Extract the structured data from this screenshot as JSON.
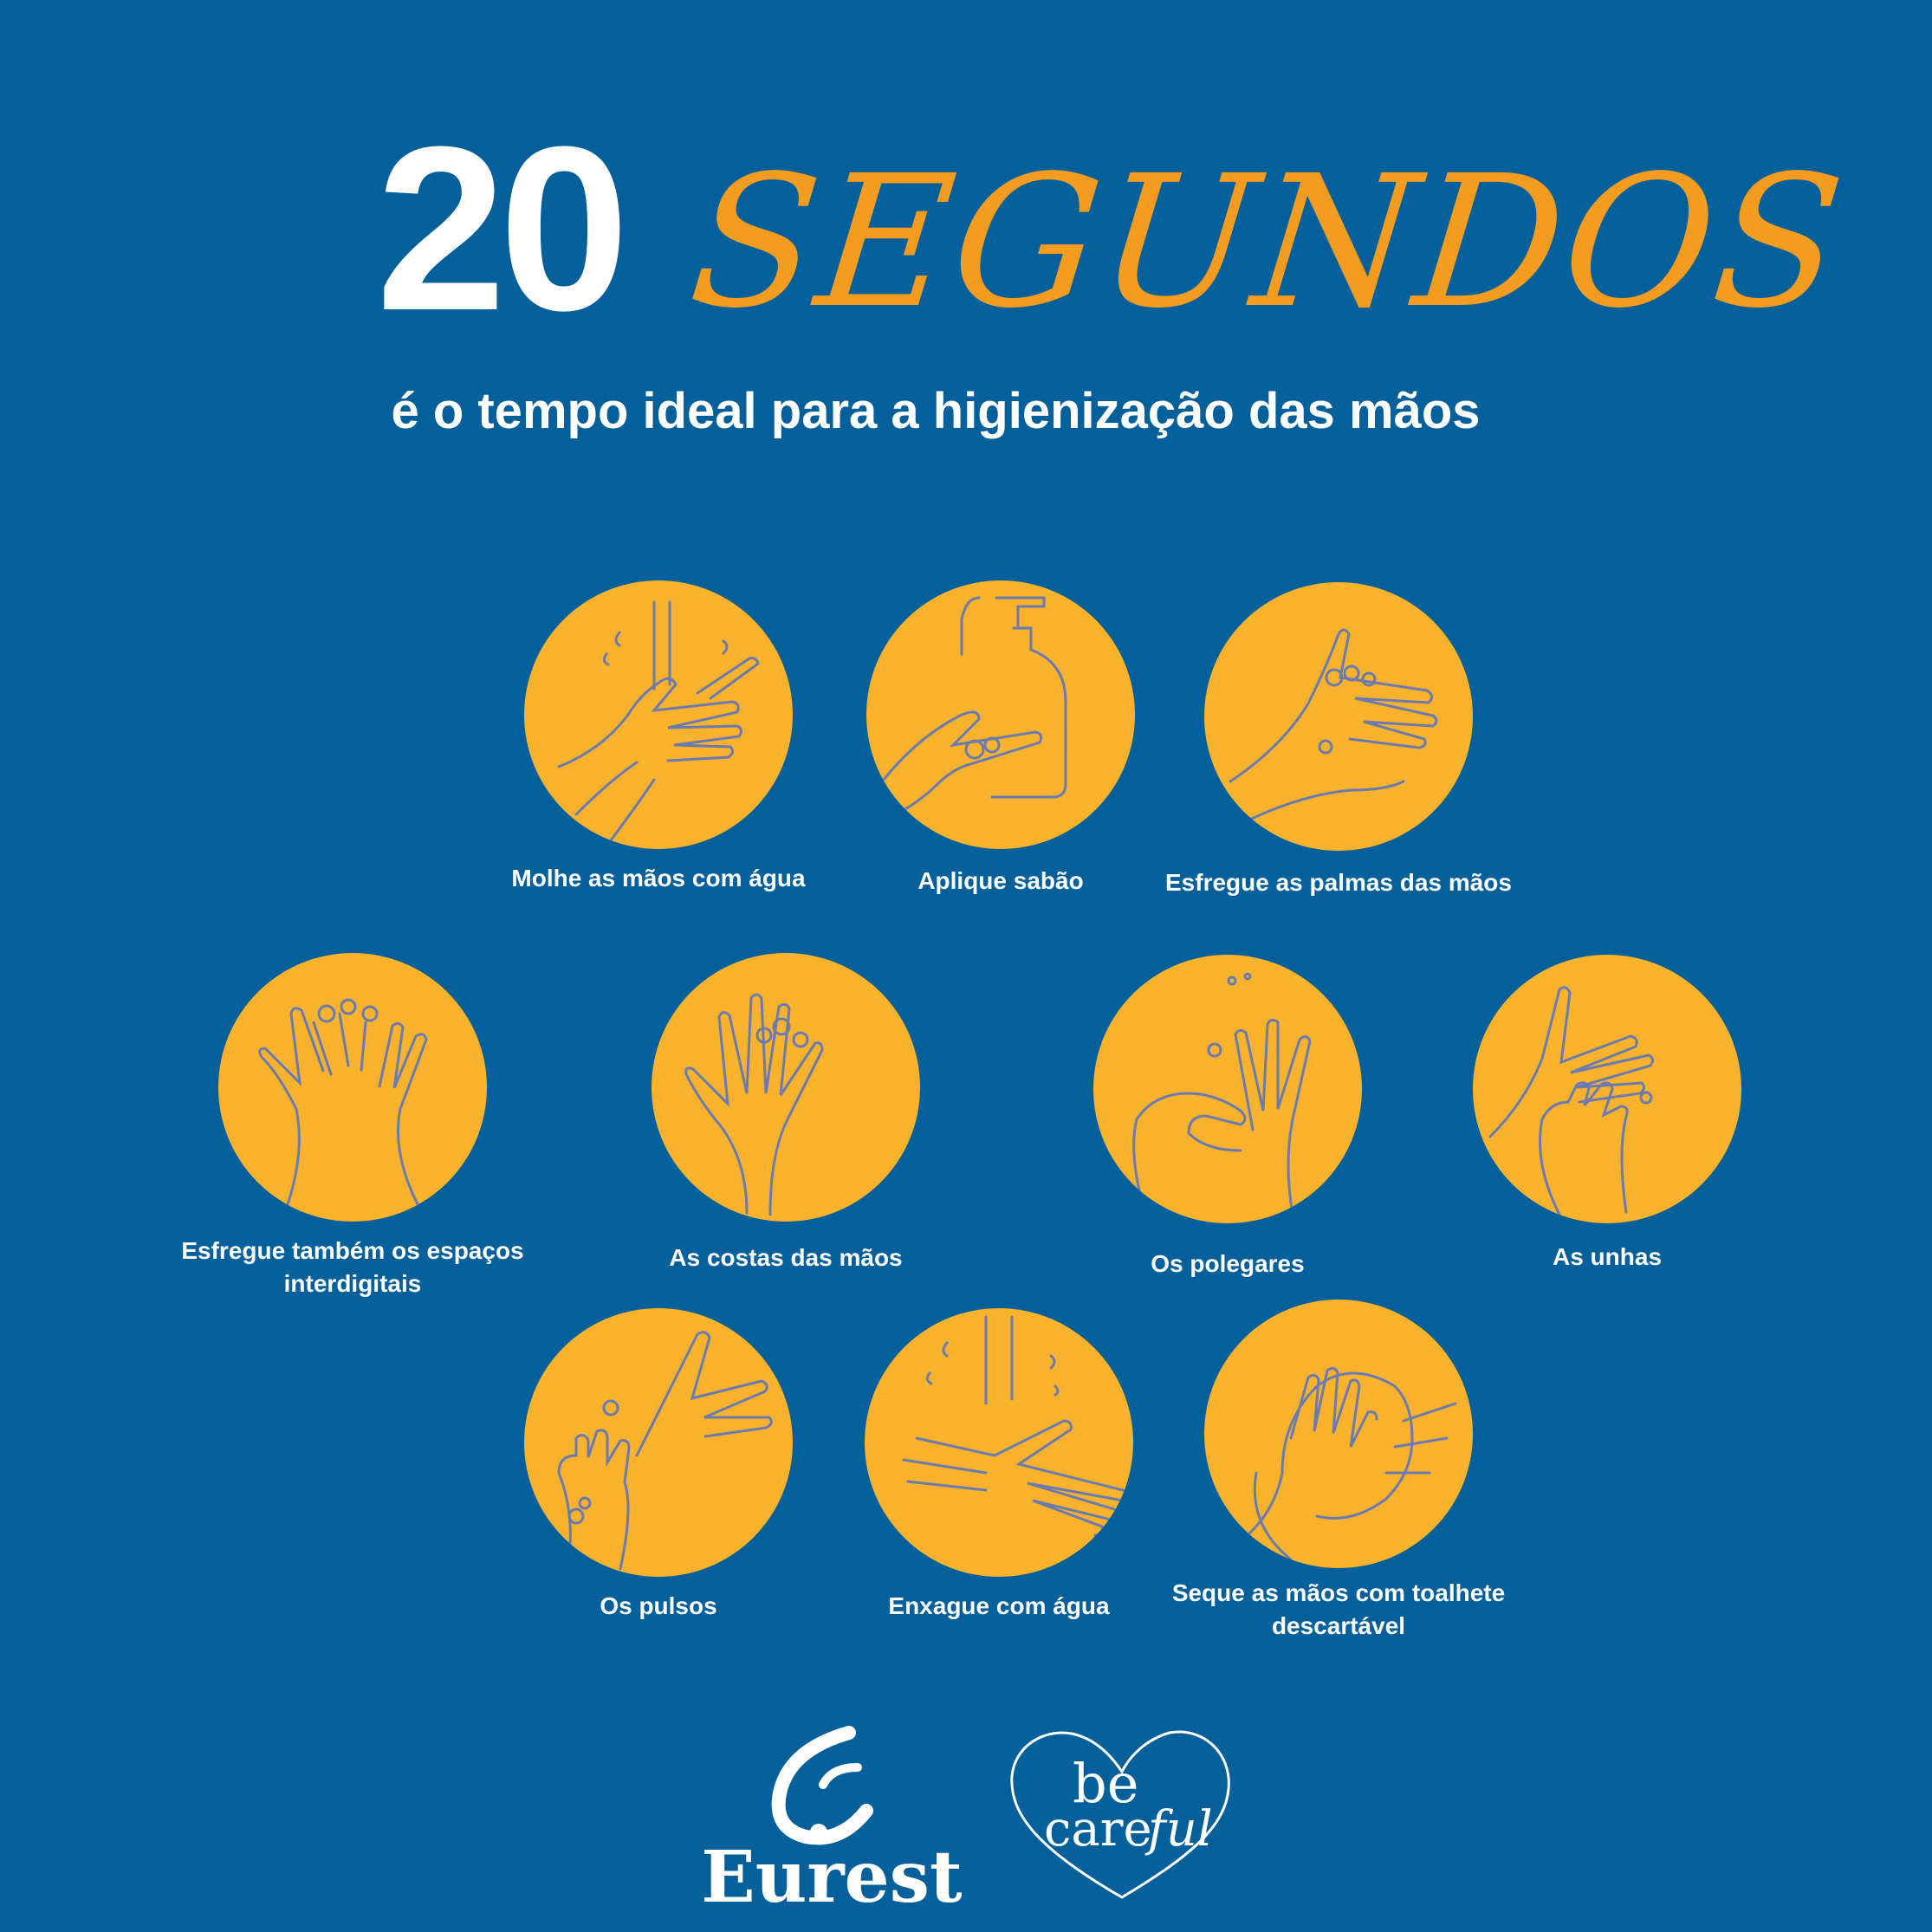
{
  "title": {
    "number": "20",
    "word": "SEGUNDOS"
  },
  "subtitle": "é o tempo ideal  para a higienização das mãos",
  "accent_color": "#f39c1f",
  "background_color": "#04609a",
  "circle_color": "#f9b22b",
  "steps": [
    {
      "label": "Molhe as mãos com água",
      "icon": "wet-hands-icon"
    },
    {
      "label": "Aplique sabão",
      "icon": "soap-dispenser-icon"
    },
    {
      "label": "Esfregue as palmas das mãos",
      "icon": "rub-palms-icon"
    },
    {
      "label": "Esfregue também os espaços interdigitais",
      "icon": "interlaced-fingers-icon"
    },
    {
      "label": "As costas das mãos",
      "icon": "back-of-hands-icon"
    },
    {
      "label": "Os polegares",
      "icon": "thumbs-icon"
    },
    {
      "label": "As unhas",
      "icon": "nails-icon"
    },
    {
      "label": "Os pulsos",
      "icon": "wrists-icon"
    },
    {
      "label": "Enxague com água",
      "icon": "rinse-hands-icon"
    },
    {
      "label": "Seque as mãos com toalhete descartável",
      "icon": "dry-hands-towel-icon"
    }
  ],
  "logos": {
    "eurest": "Eurest",
    "becareful_be": "be",
    "becareful_care": "care",
    "becareful_ful": "ful"
  }
}
